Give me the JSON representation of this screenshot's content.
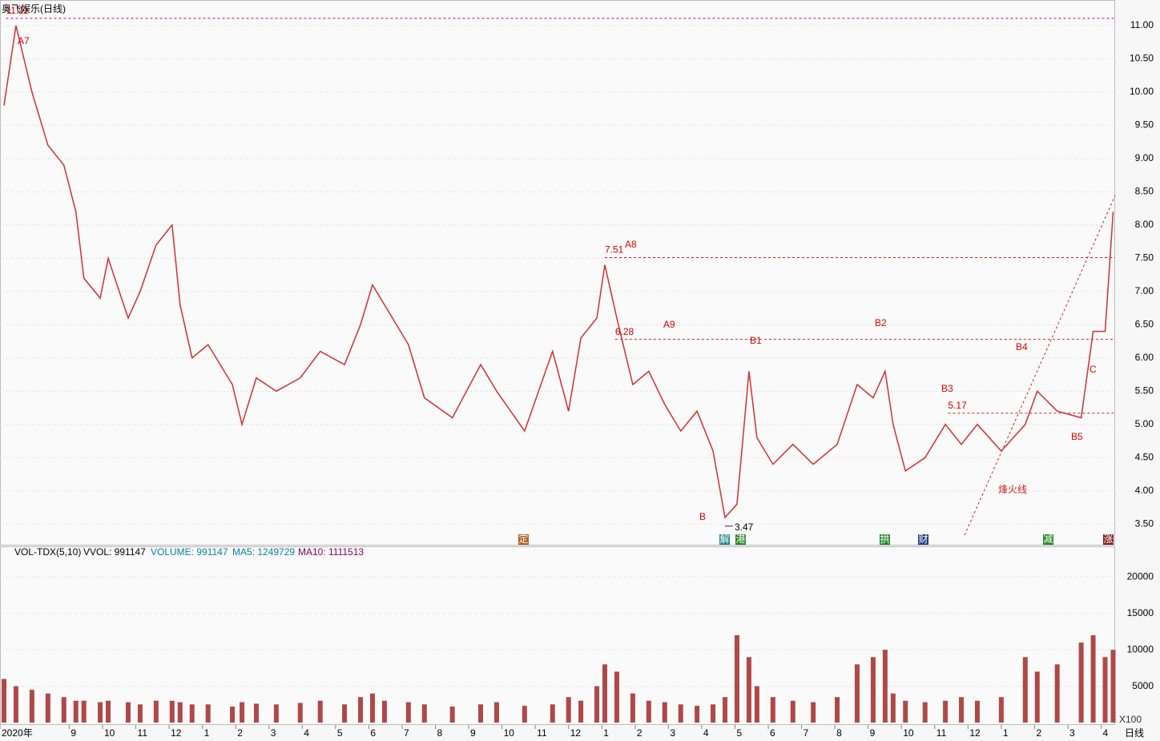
{
  "chart_data": [
    {
      "type": "line",
      "title": "奥飞娱乐(日线)",
      "period_label": "日线",
      "x": [
        -0.96,
        -0.6,
        -0.12,
        0.36,
        0.84,
        1.2,
        1.44,
        1.93,
        2.17,
        2.77,
        3.13,
        3.61,
        4.09,
        4.33,
        4.69,
        5.17,
        5.9,
        6.19,
        6.62,
        7.22,
        7.94,
        8.54,
        9.27,
        9.75,
        10.11,
        10.47,
        11.19,
        11.67,
        12.51,
        13.36,
        13.84,
        14.68,
        15.52,
        16.0,
        16.37,
        16.85,
        17.09,
        17.45,
        17.93,
        18.41,
        18.89,
        19.37,
        19.86,
        20.34,
        20.7,
        21.06,
        21.42,
        21.66,
        22.14,
        22.74,
        23.35,
        24.07,
        24.67,
        25.15,
        25.51,
        25.75,
        26.12,
        26.71,
        27.32,
        27.8,
        28.28,
        29.0,
        29.72,
        30.08,
        30.68,
        31.4,
        31.76,
        32.12,
        32.36
      ],
      "series": [
        {
          "name": "close",
          "color": "#d03030",
          "values": [
            9.8,
            11.0,
            10.0,
            9.2,
            8.9,
            8.2,
            7.2,
            6.9,
            7.5,
            6.6,
            7.0,
            7.7,
            8.0,
            6.8,
            6.0,
            6.2,
            5.6,
            5.0,
            5.7,
            5.5,
            5.7,
            6.1,
            5.9,
            6.5,
            7.1,
            6.8,
            6.2,
            5.4,
            5.1,
            5.9,
            5.5,
            4.9,
            6.1,
            5.2,
            6.3,
            6.6,
            7.4,
            6.6,
            5.6,
            5.8,
            5.3,
            4.9,
            5.2,
            4.6,
            3.6,
            3.8,
            5.8,
            4.8,
            4.4,
            4.7,
            4.4,
            4.7,
            5.6,
            5.4,
            5.8,
            5.0,
            4.3,
            4.5,
            5.0,
            4.7,
            5.0,
            4.6,
            5.0,
            5.5,
            5.2,
            5.1,
            6.4,
            6.4,
            8.2
          ]
        }
      ],
      "xlim": [
        -1.08,
        32.42
      ],
      "xticks": [
        {
          "value": -1.08,
          "label": "2020年"
        },
        {
          "value": 1,
          "label": "9"
        },
        {
          "value": 2,
          "label": "10"
        },
        {
          "value": 3,
          "label": "11"
        },
        {
          "value": 4,
          "label": "12"
        },
        {
          "value": 5,
          "label": "1"
        },
        {
          "value": 6,
          "label": "2"
        },
        {
          "value": 7,
          "label": "3"
        },
        {
          "value": 8,
          "label": "4"
        },
        {
          "value": 9,
          "label": "5"
        },
        {
          "value": 10,
          "label": "6"
        },
        {
          "value": 11,
          "label": "7"
        },
        {
          "value": 12,
          "label": "8"
        },
        {
          "value": 13,
          "label": "9"
        },
        {
          "value": 14,
          "label": "10"
        },
        {
          "value": 15,
          "label": "11"
        },
        {
          "value": 16,
          "label": "12"
        },
        {
          "value": 17,
          "label": "1"
        },
        {
          "value": 18,
          "label": "2"
        },
        {
          "value": 19,
          "label": "3"
        },
        {
          "value": 20,
          "label": "4"
        },
        {
          "value": 21,
          "label": "5"
        },
        {
          "value": 22,
          "label": "6"
        },
        {
          "value": 23,
          "label": "7"
        },
        {
          "value": 24,
          "label": "8"
        },
        {
          "value": 25,
          "label": "9"
        },
        {
          "value": 26,
          "label": "10"
        },
        {
          "value": 27,
          "label": "11"
        },
        {
          "value": 28,
          "label": "12"
        },
        {
          "value": 29,
          "label": "1"
        },
        {
          "value": 30,
          "label": "2"
        },
        {
          "value": 31,
          "label": "3"
        },
        {
          "value": 32,
          "label": "4"
        }
      ],
      "ylim": [
        3.19,
        11.12
      ],
      "yticks": [
        {
          "value": 3.5,
          "label": "3.50"
        },
        {
          "value": 4,
          "label": "4.00"
        },
        {
          "value": 4.5,
          "label": "4.50"
        },
        {
          "value": 5,
          "label": "5.00"
        },
        {
          "value": 5.5,
          "label": "5.50"
        },
        {
          "value": 6,
          "label": "6.00"
        },
        {
          "value": 6.5,
          "label": "6.50"
        },
        {
          "value": 7,
          "label": "7.00"
        },
        {
          "value": 7.5,
          "label": "7.50"
        },
        {
          "value": 8,
          "label": "8.00"
        },
        {
          "value": 8.5,
          "label": "8.50"
        },
        {
          "value": 9,
          "label": "9.00"
        },
        {
          "value": 9.5,
          "label": "9.50"
        },
        {
          "value": 10,
          "label": "10.00"
        },
        {
          "value": 10.5,
          "label": "10.50"
        },
        {
          "value": 11,
          "label": "11.00"
        }
      ],
      "grid": true,
      "levels": [
        {
          "value": 11.11,
          "label": "11.11",
          "x": -0.9
        },
        {
          "value": 7.51,
          "label": "7.51",
          "x": 17.09
        },
        {
          "value": 6.28,
          "label": "6.28",
          "x": 17.4
        },
        {
          "value": 5.17,
          "label": "5.17",
          "x": 27.4
        },
        {
          "value": 3.47,
          "label": "3.47",
          "x": 20.7
        }
      ],
      "annotations": [
        "A7",
        "A8",
        "A9",
        "B1",
        "B2",
        "B3",
        "B4",
        "B5",
        "B",
        "C",
        "烽火线"
      ],
      "markers": [
        "定",
        "解",
        "港",
        "拱",
        "财",
        "减",
        "涨"
      ]
    },
    {
      "type": "bar",
      "title": "VOL-TDX(5,10)",
      "stats": [
        "VVOL: 991147",
        "VOLUME: 991147",
        "MA5: 1249729",
        "MA10: 1111513"
      ],
      "unit_label": "X100",
      "values": [
        6000,
        5000,
        4500,
        4000,
        3500,
        3000,
        3000,
        2800,
        3000,
        2800,
        2500,
        3000,
        3000,
        2800,
        2500,
        2500,
        2200,
        2800,
        2600,
        2500,
        2700,
        3000,
        2500,
        3500,
        4000,
        3000,
        2800,
        2500,
        2200,
        2500,
        2800,
        2300,
        2500,
        3500,
        3000,
        5000,
        8000,
        7000,
        4000,
        3000,
        2800,
        2500,
        2300,
        2500,
        3500,
        12000,
        9000,
        5000,
        3500,
        3000,
        2800,
        3500,
        8000,
        9000,
        10000,
        4000,
        3000,
        2800,
        3000,
        3500,
        3000,
        3500,
        9000,
        7000,
        8000,
        11000,
        12000,
        9000,
        10000
      ],
      "color": "#b04848",
      "ylim": [
        0,
        24000
      ],
      "yticks": [
        5000,
        10000,
        15000,
        20000
      ]
    }
  ]
}
